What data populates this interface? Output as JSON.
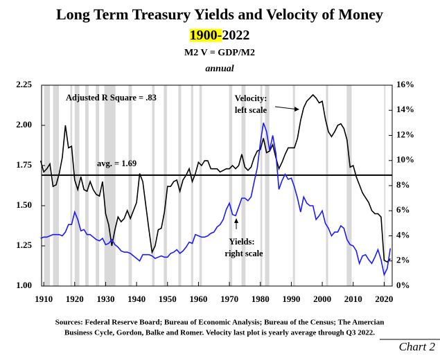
{
  "chart_data": {
    "type": "line",
    "title": "Long Term Treasury Yields and Velocity of Money",
    "subtitle_highlight": "1900-",
    "subtitle_rest": "2022",
    "subtitle2": "M2 V = GDP/M2",
    "subtitle3": "annual",
    "annotations": [
      "Adjusted R Square = .83",
      "avg. = 1.69",
      "Velocity:",
      "left scale",
      "Yields:",
      "right scale"
    ],
    "source_lines": [
      "Sources: Federal Reserve Board; Bureau of Economic Analysis; Bureau of the Census; The Amercian",
      "Business Cycle, Gordon, Balke and Romer. Velocity last plot is yearly average through Q3 2022."
    ],
    "chart_label": "Chart 2",
    "average": 1.69,
    "xlim": [
      1909.3,
      2022.6
    ],
    "xticks": [
      1910,
      1920,
      1930,
      1940,
      1950,
      1960,
      1970,
      1980,
      1990,
      2000,
      2010,
      2020
    ],
    "ylim": [
      1.0,
      2.25
    ],
    "yticks": [
      {
        "value": 1.0,
        "label": "1.00"
      },
      {
        "value": 1.25,
        "label": "1.25"
      },
      {
        "value": 1.5,
        "label": "1.50"
      },
      {
        "value": 1.75,
        "label": "1.75"
      },
      {
        "value": 2.0,
        "label": "2.00"
      },
      {
        "value": 2.25,
        "label": "2.25"
      }
    ],
    "y2lim": [
      0,
      16
    ],
    "y2ticks": [
      {
        "value": 0,
        "label": "0%"
      },
      {
        "value": 2,
        "label": "2%"
      },
      {
        "value": 4,
        "label": "4%"
      },
      {
        "value": 6,
        "label": "6%"
      },
      {
        "value": 8,
        "label": "8%"
      },
      {
        "value": 10,
        "label": "10%"
      },
      {
        "value": 12,
        "label": "12%"
      },
      {
        "value": 14,
        "label": "14%"
      },
      {
        "value": 16,
        "label": "16%"
      }
    ],
    "shade_color": "#d9d9d9",
    "shaded_periods": [
      [
        1910.1,
        1912.0
      ],
      [
        1913.0,
        1914.9
      ],
      [
        1918.6,
        1919.2
      ],
      [
        1920.0,
        1921.5
      ],
      [
        1923.4,
        1924.5
      ],
      [
        1926.8,
        1927.9
      ],
      [
        1929.6,
        1933.2
      ],
      [
        1937.4,
        1938.5
      ],
      [
        1945.0,
        1945.8
      ],
      [
        1948.8,
        1949.8
      ],
      [
        1953.5,
        1954.4
      ],
      [
        1957.6,
        1958.3
      ],
      [
        1960.3,
        1961.1
      ],
      [
        1969.9,
        1970.9
      ],
      [
        1973.9,
        1975.2
      ],
      [
        1980.0,
        1980.6
      ],
      [
        1981.5,
        1982.9
      ],
      [
        1990.5,
        1991.2
      ],
      [
        2001.2,
        2001.9
      ],
      [
        2007.9,
        2009.5
      ],
      [
        2020.0,
        2020.4
      ]
    ],
    "x": [
      1909,
      1910,
      1911,
      1912,
      1913,
      1914,
      1915,
      1916,
      1917,
      1918,
      1919,
      1920,
      1921,
      1922,
      1923,
      1924,
      1925,
      1926,
      1927,
      1928,
      1929,
      1930,
      1931,
      1932,
      1933,
      1934,
      1935,
      1936,
      1937,
      1938,
      1939,
      1940,
      1941,
      1942,
      1943,
      1944,
      1945,
      1946,
      1947,
      1948,
      1949,
      1950,
      1951,
      1952,
      1953,
      1954,
      1955,
      1956,
      1957,
      1958,
      1959,
      1960,
      1961,
      1962,
      1963,
      1964,
      1965,
      1966,
      1967,
      1968,
      1969,
      1970,
      1971,
      1972,
      1973,
      1974,
      1975,
      1976,
      1977,
      1978,
      1979,
      1980,
      1981,
      1982,
      1983,
      1984,
      1985,
      1986,
      1987,
      1988,
      1989,
      1990,
      1991,
      1992,
      1993,
      1994,
      1995,
      1996,
      1997,
      1998,
      1999,
      2000,
      2001,
      2002,
      2003,
      2004,
      2005,
      2006,
      2007,
      2008,
      2009,
      2010,
      2011,
      2012,
      2013,
      2014,
      2015,
      2016,
      2017,
      2018,
      2019,
      2020,
      2021,
      2022
    ],
    "series": [
      {
        "name": "Velocity",
        "color": "#000000",
        "axis": "y",
        "values": [
          1.78,
          1.71,
          1.73,
          1.76,
          1.62,
          1.63,
          1.7,
          1.8,
          2.0,
          1.86,
          1.87,
          1.66,
          1.6,
          1.68,
          1.6,
          1.59,
          1.65,
          1.6,
          1.57,
          1.56,
          1.65,
          1.45,
          1.38,
          1.25,
          1.35,
          1.43,
          1.4,
          1.42,
          1.47,
          1.42,
          1.47,
          1.52,
          1.7,
          1.65,
          1.5,
          1.35,
          1.21,
          1.25,
          1.35,
          1.36,
          1.46,
          1.62,
          1.62,
          1.65,
          1.66,
          1.59,
          1.66,
          1.69,
          1.73,
          1.65,
          1.7,
          1.77,
          1.75,
          1.78,
          1.78,
          1.73,
          1.73,
          1.73,
          1.71,
          1.72,
          1.73,
          1.73,
          1.75,
          1.73,
          1.75,
          1.82,
          1.74,
          1.72,
          1.74,
          1.8,
          1.84,
          1.85,
          1.92,
          1.83,
          1.84,
          1.88,
          1.8,
          1.73,
          1.77,
          1.82,
          1.86,
          1.86,
          1.86,
          1.92,
          2.03,
          2.11,
          2.15,
          2.17,
          2.19,
          2.17,
          2.14,
          2.15,
          2.04,
          1.96,
          1.93,
          1.96,
          2.0,
          2.01,
          1.98,
          1.91,
          1.74,
          1.75,
          1.68,
          1.63,
          1.58,
          1.55,
          1.52,
          1.47,
          1.45,
          1.45,
          1.43,
          1.16,
          1.15,
          1.17
        ]
      },
      {
        "name": "Yields",
        "color": "#1a1aff",
        "axis": "y2",
        "values": [
          3.8,
          3.9,
          3.9,
          4.0,
          4.1,
          4.1,
          4.1,
          4.0,
          4.3,
          4.9,
          4.9,
          5.9,
          5.3,
          4.4,
          4.5,
          4.1,
          4.1,
          3.9,
          3.7,
          3.6,
          3.8,
          3.3,
          3.4,
          3.7,
          3.3,
          3.1,
          2.8,
          2.7,
          2.7,
          2.6,
          2.4,
          2.2,
          2.0,
          2.5,
          2.5,
          2.5,
          2.4,
          2.2,
          2.3,
          2.4,
          2.3,
          2.3,
          2.6,
          2.7,
          2.9,
          2.6,
          2.8,
          3.1,
          3.5,
          3.4,
          4.1,
          4.0,
          3.9,
          3.9,
          4.0,
          4.2,
          4.3,
          4.7,
          4.9,
          5.3,
          6.1,
          6.6,
          5.7,
          5.6,
          6.3,
          7.0,
          7.0,
          6.8,
          7.1,
          8.3,
          9.4,
          11.4,
          13.0,
          12.3,
          10.8,
          12.0,
          10.6,
          7.7,
          8.4,
          8.9,
          8.5,
          8.6,
          7.9,
          7.0,
          5.9,
          7.1,
          6.6,
          6.4,
          6.4,
          5.3,
          5.6,
          6.0,
          5.0,
          4.6,
          4.0,
          4.3,
          4.3,
          4.8,
          4.6,
          3.7,
          3.3,
          3.2,
          2.8,
          1.8,
          2.4,
          2.5,
          2.1,
          1.8,
          2.3,
          2.9,
          2.1,
          0.9,
          1.4,
          3.0
        ]
      }
    ]
  }
}
